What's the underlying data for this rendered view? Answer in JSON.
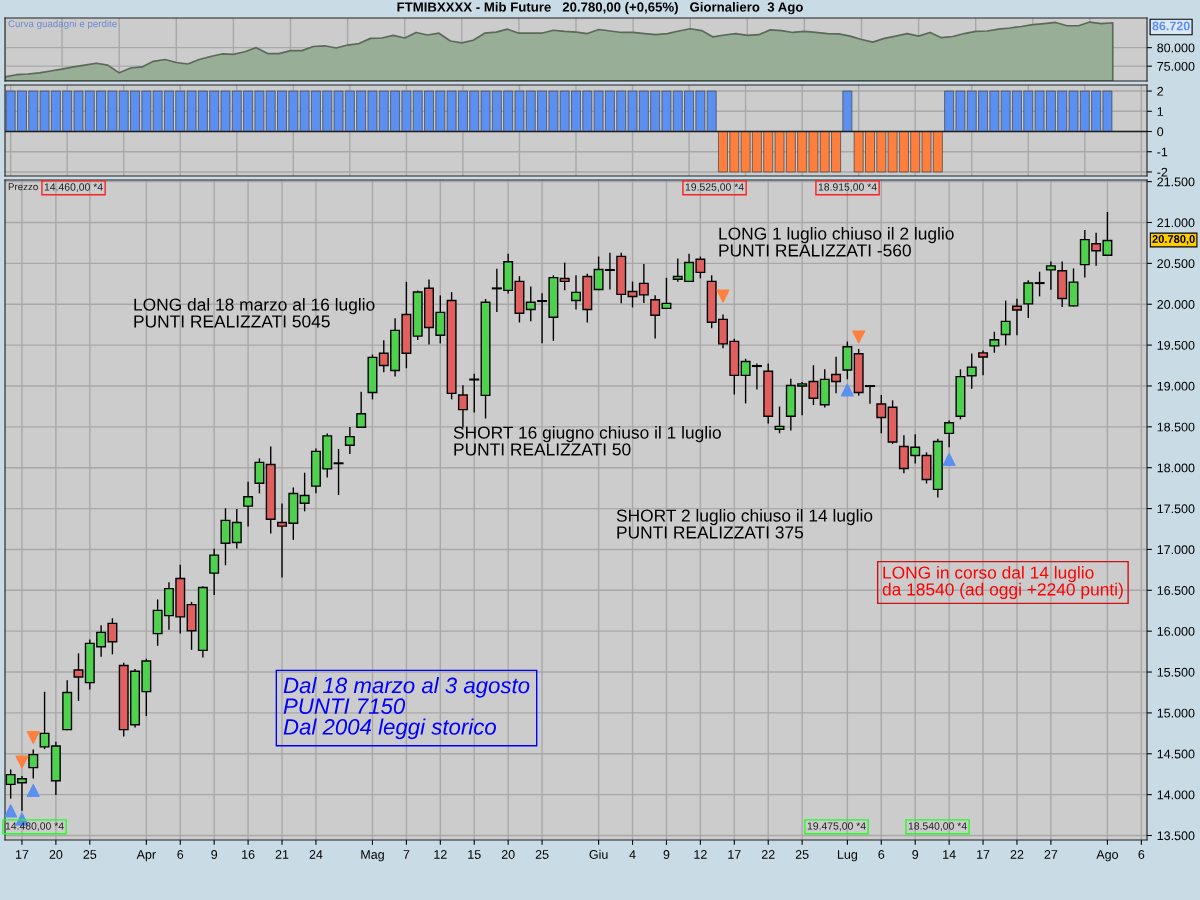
{
  "chart_data": [
    {
      "type": "area",
      "title": "FTMIBXXXX - Mib Future   20.780,00 (+0,65%)   Giornaliero  3 Ago",
      "categories": [
        null,
        null,
        null,
        null,
        null,
        null,
        null,
        null,
        null,
        null,
        null,
        null,
        null,
        null,
        null,
        null,
        null,
        null,
        null,
        null,
        null,
        null,
        null,
        null,
        null,
        null,
        null,
        null,
        null,
        null,
        null,
        null,
        null,
        null,
        null,
        null,
        null,
        null,
        null,
        null,
        null,
        null,
        null,
        null,
        null,
        null,
        null,
        null,
        null,
        null,
        null,
        null,
        null,
        null,
        null,
        null,
        null,
        null,
        null,
        null,
        null,
        null,
        null,
        null,
        null,
        null,
        null,
        null,
        null,
        null,
        null,
        null,
        null,
        null,
        null,
        null,
        null,
        null,
        null,
        null,
        null,
        null,
        null,
        null,
        null,
        null,
        null,
        null,
        null,
        null,
        null,
        null,
        null,
        null,
        null,
        null,
        null,
        null
      ],
      "series": [
        {
          "color": "#98ae96",
          "values": [
            72100,
            72700,
            72900,
            73200,
            73700,
            74200,
            74800,
            75300,
            75800,
            75300,
            73200,
            74500,
            74800,
            76300,
            76800,
            76000,
            75600,
            76800,
            77600,
            78300,
            78200,
            78900,
            80000,
            78400,
            78400,
            79200,
            79200,
            80300,
            80500,
            79900,
            80700,
            81100,
            82500,
            82600,
            83300,
            82600,
            84100,
            83400,
            83900,
            81800,
            81300,
            82000,
            83900,
            84200,
            85000,
            83900,
            83900,
            83900,
            84700,
            84400,
            84200,
            83800,
            84900,
            84500,
            84100,
            84100,
            83800,
            83500,
            83800,
            84500,
            85100,
            84600,
            82900,
            83400,
            83800,
            83300,
            83500,
            84800,
            84600,
            84100,
            84400,
            84100,
            83800,
            83700,
            83100,
            82200,
            81500,
            82500,
            83100,
            83800,
            83100,
            84100,
            82700,
            83000,
            83800,
            84400,
            84500,
            85000,
            85300,
            85700,
            86200,
            86500,
            86800,
            85900,
            85900,
            86900,
            86500,
            86720
          ]
        }
      ],
      "ylim": [
        71000,
        88000
      ],
      "yticks": [
        {
          "value": 75000,
          "label": "75.000"
        },
        {
          "value": 80000,
          "label": "80.000"
        }
      ],
      "annotations": [
        "Curva guadagni e perdite",
        "86.720"
      ],
      "grid": true,
      "tick_labels": "y"
    },
    {
      "type": "bar",
      "categories": [
        null,
        null,
        null,
        null,
        null,
        null,
        null,
        null,
        null,
        null,
        null,
        null,
        null,
        null,
        null,
        null,
        null,
        null,
        null,
        null,
        null,
        null,
        null,
        null,
        null,
        null,
        null,
        null,
        null,
        null,
        null,
        null,
        null,
        null,
        null,
        null,
        null,
        null,
        null,
        null,
        null,
        null,
        null,
        null,
        null,
        null,
        null,
        null,
        null,
        null,
        null,
        null,
        null,
        null,
        null,
        null,
        null,
        null,
        null,
        null,
        null,
        null,
        null,
        null,
        null,
        null,
        null,
        null,
        null,
        null,
        null,
        null,
        null,
        null,
        null,
        null,
        null,
        null,
        null,
        null,
        null,
        null,
        null,
        null,
        null,
        null,
        null,
        null,
        null,
        null,
        null,
        null,
        null,
        null,
        null,
        null,
        null,
        null,
        null,
        null,
        null
      ],
      "values": [
        2,
        2,
        2,
        2,
        2,
        2,
        2,
        2,
        2,
        2,
        2,
        2,
        2,
        2,
        2,
        2,
        2,
        2,
        2,
        2,
        2,
        2,
        2,
        2,
        2,
        2,
        2,
        2,
        2,
        2,
        2,
        2,
        2,
        2,
        2,
        2,
        2,
        2,
        2,
        2,
        2,
        2,
        2,
        2,
        2,
        2,
        2,
        2,
        2,
        2,
        2,
        2,
        2,
        2,
        2,
        2,
        2,
        2,
        2,
        2,
        2,
        2,
        2,
        -2,
        -2,
        -2,
        -2,
        -2,
        -2,
        -2,
        -2,
        -2,
        -2,
        -2,
        2,
        -2,
        -2,
        -2,
        -2,
        -2,
        -2,
        -2,
        -2,
        2,
        2,
        2,
        2,
        2,
        2,
        2,
        2,
        2,
        2,
        2,
        2,
        2,
        2,
        2,
        null,
        null,
        null
      ],
      "colors": [
        "#5b8ff0",
        "#5b8ff0",
        "#5b8ff0",
        "#5b8ff0",
        "#5b8ff0",
        "#5b8ff0",
        "#5b8ff0",
        "#5b8ff0",
        "#5b8ff0",
        "#5b8ff0",
        "#5b8ff0",
        "#5b8ff0",
        "#5b8ff0",
        "#5b8ff0",
        "#5b8ff0",
        "#5b8ff0",
        "#5b8ff0",
        "#5b8ff0",
        "#5b8ff0",
        "#5b8ff0",
        "#5b8ff0",
        "#5b8ff0",
        "#5b8ff0",
        "#5b8ff0",
        "#5b8ff0",
        "#5b8ff0",
        "#5b8ff0",
        "#5b8ff0",
        "#5b8ff0",
        "#5b8ff0",
        "#5b8ff0",
        "#5b8ff0",
        "#5b8ff0",
        "#5b8ff0",
        "#5b8ff0",
        "#5b8ff0",
        "#5b8ff0",
        "#5b8ff0",
        "#5b8ff0",
        "#5b8ff0",
        "#5b8ff0",
        "#5b8ff0",
        "#5b8ff0",
        "#5b8ff0",
        "#5b8ff0",
        "#5b8ff0",
        "#5b8ff0",
        "#5b8ff0",
        "#5b8ff0",
        "#5b8ff0",
        "#5b8ff0",
        "#5b8ff0",
        "#5b8ff0",
        "#5b8ff0",
        "#5b8ff0",
        "#5b8ff0",
        "#5b8ff0",
        "#5b8ff0",
        "#5b8ff0",
        "#5b8ff0",
        "#5b8ff0",
        "#5b8ff0",
        "#5b8ff0",
        "#ff7f3f",
        "#ff7f3f",
        "#ff7f3f",
        "#ff7f3f",
        "#ff7f3f",
        "#ff7f3f",
        "#ff7f3f",
        "#ff7f3f",
        "#ff7f3f",
        "#ff7f3f",
        "#ff7f3f",
        "#5b8ff0",
        "#ff7f3f",
        "#ff7f3f",
        "#ff7f3f",
        "#ff7f3f",
        "#ff7f3f",
        "#ff7f3f",
        "#ff7f3f",
        "#ff7f3f",
        "#5b8ff0",
        "#5b8ff0",
        "#5b8ff0",
        "#5b8ff0",
        "#5b8ff0",
        "#5b8ff0",
        "#5b8ff0",
        "#5b8ff0",
        "#5b8ff0",
        "#5b8ff0",
        "#5b8ff0",
        "#5b8ff0",
        "#5b8ff0",
        "#5b8ff0",
        "#5b8ff0",
        "#5b8ff0",
        "#5b8ff0",
        "#5b8ff0"
      ],
      "ylim": [
        -2.2,
        2.3
      ],
      "yticks": [
        -2,
        -1,
        0,
        1,
        2
      ],
      "grid": true,
      "tick_labels": "y"
    },
    {
      "type": "candlestick",
      "categories": [
        null,
        "17",
        null,
        null,
        "20",
        null,
        null,
        "25",
        null,
        null,
        null,
        null,
        "Apr",
        null,
        null,
        "6",
        null,
        null,
        "9",
        null,
        null,
        "16",
        null,
        null,
        "21",
        null,
        null,
        "24",
        null,
        null,
        null,
        null,
        "Mag",
        null,
        null,
        "7",
        null,
        null,
        "12",
        null,
        null,
        "15",
        null,
        null,
        "20",
        null,
        null,
        "25",
        null,
        null,
        null,
        null,
        "Giu",
        null,
        null,
        "4",
        null,
        null,
        "9",
        null,
        null,
        "12",
        null,
        null,
        "17",
        null,
        null,
        "22",
        null,
        null,
        "25",
        null,
        null,
        null,
        "Lug",
        null,
        null,
        "6",
        null,
        null,
        "9",
        null,
        null,
        "14",
        null,
        null,
        "17",
        null,
        null,
        "22",
        null,
        null,
        "27",
        null,
        null,
        null,
        null,
        "Ago",
        null,
        null,
        "6"
      ],
      "ohlc": [
        [
          14125,
          14300,
          13960,
          14245
        ],
        [
          14145,
          14220,
          13810,
          14195
        ],
        [
          14330,
          14545,
          14205,
          14490
        ],
        [
          14585,
          15250,
          14565,
          14750
        ],
        [
          14170,
          14640,
          14005,
          14595
        ],
        [
          14795,
          15390,
          14795,
          15250
        ],
        [
          15525,
          15720,
          15155,
          15440
        ],
        [
          15370,
          15890,
          15295,
          15850
        ],
        [
          15810,
          16065,
          15695,
          15985
        ],
        [
          16095,
          16150,
          15725,
          15870
        ],
        [
          15580,
          15605,
          14720,
          14795
        ],
        [
          14855,
          15530,
          14830,
          15510
        ],
        [
          15260,
          15655,
          14970,
          15635
        ],
        [
          15970,
          16380,
          15830,
          16255
        ],
        [
          16190,
          16590,
          16025,
          16520
        ],
        [
          16645,
          16805,
          15980,
          16175
        ],
        [
          16325,
          16350,
          15780,
          16005
        ],
        [
          15765,
          16540,
          15685,
          16535
        ],
        [
          16710,
          17000,
          16450,
          16930
        ],
        [
          17075,
          17495,
          16815,
          17355
        ],
        [
          17085,
          17485,
          17020,
          17330
        ],
        [
          17530,
          17820,
          17290,
          17645
        ],
        [
          17810,
          18105,
          17695,
          18065
        ],
        [
          18040,
          18250,
          17205,
          17370
        ],
        [
          17330,
          17555,
          16665,
          17285
        ],
        [
          17320,
          17750,
          17125,
          17685
        ],
        [
          17565,
          17930,
          17475,
          17660
        ],
        [
          17775,
          18225,
          17695,
          18200
        ],
        [
          17985,
          18410,
          17890,
          18390
        ],
        [
          18050,
          18220,
          17675,
          18055
        ],
        [
          18275,
          18490,
          18175,
          18380
        ],
        [
          18495,
          18920,
          18495,
          18660
        ],
        [
          18920,
          19375,
          18845,
          19350
        ],
        [
          19400,
          19550,
          19175,
          19250
        ],
        [
          19190,
          19820,
          19125,
          19680
        ],
        [
          19875,
          20265,
          19225,
          19400
        ],
        [
          19610,
          20160,
          19570,
          20150
        ],
        [
          20195,
          20295,
          19515,
          19715
        ],
        [
          19620,
          20100,
          19530,
          19900
        ],
        [
          20045,
          20140,
          18845,
          18910
        ],
        [
          18890,
          19000,
          18500,
          18710
        ],
        [
          19075,
          19140,
          18685,
          19080
        ],
        [
          18885,
          20055,
          18610,
          20025
        ],
        [
          20190,
          20425,
          19915,
          20195
        ],
        [
          20170,
          20610,
          20140,
          20520
        ],
        [
          20280,
          20335,
          19785,
          19890
        ],
        [
          19935,
          20210,
          19800,
          20025
        ],
        [
          20035,
          20125,
          19530,
          20040
        ],
        [
          19840,
          20345,
          19560,
          20325
        ],
        [
          20315,
          20500,
          20180,
          20280
        ],
        [
          20045,
          20345,
          19945,
          20145
        ],
        [
          20340,
          20365,
          19785,
          19935
        ],
        [
          20180,
          20575,
          20180,
          20425
        ],
        [
          20415,
          20620,
          20190,
          20420
        ],
        [
          20585,
          20620,
          20020,
          20120
        ],
        [
          20155,
          20270,
          19970,
          20095
        ],
        [
          20255,
          20485,
          20025,
          20115
        ],
        [
          20055,
          20100,
          19590,
          19865
        ],
        [
          19950,
          20315,
          19950,
          20010
        ],
        [
          20305,
          20550,
          20285,
          20340
        ],
        [
          20280,
          20610,
          20280,
          20510
        ],
        [
          20550,
          20575,
          20325,
          20390
        ],
        [
          20280,
          20345,
          19715,
          19780
        ],
        [
          19815,
          19865,
          19470,
          19515
        ],
        [
          19545,
          19570,
          18905,
          19130
        ],
        [
          19130,
          19325,
          18795,
          19300
        ],
        [
          19240,
          19265,
          18965,
          19245
        ],
        [
          19180,
          19265,
          18550,
          18630
        ],
        [
          18470,
          18740,
          18430,
          18505
        ],
        [
          18630,
          19080,
          18465,
          19005
        ],
        [
          19000,
          19040,
          18650,
          19025
        ],
        [
          19055,
          19245,
          18775,
          18850
        ],
        [
          18770,
          19195,
          18745,
          19080
        ],
        [
          19140,
          19350,
          18920,
          19055
        ],
        [
          19195,
          19535,
          19090,
          19480
        ],
        [
          19395,
          19445,
          18890,
          18920
        ],
        [
          18995,
          19000,
          18790,
          19000
        ],
        [
          18780,
          18880,
          18430,
          18615
        ],
        [
          18740,
          18815,
          18300,
          18315
        ],
        [
          18260,
          18390,
          17940,
          17990
        ],
        [
          18150,
          18400,
          18060,
          18250
        ],
        [
          18150,
          18180,
          17815,
          17855
        ],
        [
          17735,
          18345,
          17645,
          18320
        ],
        [
          18420,
          18570,
          18260,
          18550
        ],
        [
          18630,
          19195,
          18600,
          19115
        ],
        [
          19125,
          19390,
          18975,
          19230
        ],
        [
          19405,
          19425,
          19140,
          19355
        ],
        [
          19490,
          19655,
          19415,
          19565
        ],
        [
          19630,
          20035,
          19505,
          19790
        ],
        [
          19975,
          20060,
          19630,
          19930
        ],
        [
          20005,
          20285,
          19840,
          20260
        ],
        [
          20255,
          20390,
          20105,
          20260
        ],
        [
          20420,
          20515,
          20185,
          20470
        ],
        [
          20410,
          20515,
          19975,
          20070
        ],
        [
          19980,
          20430,
          19980,
          20270
        ],
        [
          20485,
          20900,
          20335,
          20790
        ],
        [
          20740,
          20865,
          20480,
          20655
        ],
        [
          20600,
          21120,
          20600,
          20780
        ],
        null,
        null,
        null
      ],
      "colors": [
        "#4fd14f",
        "#4fd14f",
        "#4fd14f",
        "#4fd14f",
        "#4fd14f",
        "#4fd14f",
        "#e06060",
        "#4fd14f",
        "#4fd14f",
        "#e06060",
        "#e06060",
        "#4fd14f",
        "#4fd14f",
        "#4fd14f",
        "#4fd14f",
        "#e06060",
        "#e06060",
        "#4fd14f",
        "#4fd14f",
        "#4fd14f",
        "#4fd14f",
        "#4fd14f",
        "#4fd14f",
        "#e06060",
        "#e06060",
        "#4fd14f",
        "#4fd14f",
        "#4fd14f",
        "#4fd14f",
        "#4fd14f",
        "#4fd14f",
        "#4fd14f",
        "#4fd14f",
        "#e06060",
        "#4fd14f",
        "#e06060",
        "#4fd14f",
        "#e06060",
        "#4fd14f",
        "#e06060",
        "#e06060",
        "#4fd14f",
        "#4fd14f",
        "#4fd14f",
        "#4fd14f",
        "#e06060",
        "#4fd14f",
        "#4fd14f",
        "#4fd14f",
        "#e06060",
        "#4fd14f",
        "#e06060",
        "#4fd14f",
        "#4fd14f",
        "#e06060",
        "#e06060",
        "#e06060",
        "#e06060",
        "#4fd14f",
        "#4fd14f",
        "#4fd14f",
        "#e06060",
        "#e06060",
        "#e06060",
        "#e06060",
        "#4fd14f",
        "#4fd14f",
        "#e06060",
        "#4fd14f",
        "#4fd14f",
        "#4fd14f",
        "#e06060",
        "#4fd14f",
        "#e06060",
        "#4fd14f",
        "#e06060",
        "#4fd14f",
        "#e06060",
        "#e06060",
        "#e06060",
        "#4fd14f",
        "#e06060",
        "#4fd14f",
        "#4fd14f",
        "#4fd14f",
        "#4fd14f",
        "#e06060",
        "#4fd14f",
        "#4fd14f",
        "#e06060",
        "#4fd14f",
        "#4fd14f",
        "#4fd14f",
        "#e06060",
        "#4fd14f",
        "#4fd14f",
        "#e06060",
        "#4fd14f",
        null,
        null,
        null
      ],
      "series": [
        {
          "type": "scatter",
          "marker": "triangle",
          "color": "#5b8ff0",
          "values": [
            13800,
            13700,
            14050,
            null,
            null,
            null,
            null,
            null,
            null,
            null,
            null,
            null,
            null,
            null,
            null,
            null,
            null,
            null,
            null,
            null,
            null,
            null,
            null,
            null,
            null,
            null,
            null,
            null,
            null,
            null,
            null,
            null,
            null,
            null,
            null,
            null,
            null,
            null,
            null,
            null,
            null,
            null,
            null,
            null,
            null,
            null,
            null,
            null,
            null,
            null,
            null,
            null,
            null,
            null,
            null,
            null,
            null,
            null,
            null,
            null,
            null,
            null,
            null,
            null,
            null,
            null,
            null,
            null,
            null,
            null,
            null,
            null,
            null,
            null,
            18950,
            null,
            null,
            null,
            null,
            null,
            null,
            null,
            null,
            18100,
            null,
            null,
            null,
            null,
            null,
            null,
            null,
            null,
            null,
            null,
            null,
            null,
            null,
            null,
            null,
            null,
            null
          ]
        },
        {
          "type": "scatter",
          "marker": "triangle_down",
          "color": "#ff7f3f",
          "values": [
            null,
            14400,
            14700,
            null,
            null,
            null,
            null,
            null,
            null,
            null,
            null,
            null,
            null,
            null,
            null,
            null,
            null,
            null,
            null,
            null,
            null,
            null,
            null,
            null,
            null,
            null,
            null,
            null,
            null,
            null,
            null,
            null,
            null,
            null,
            null,
            null,
            null,
            null,
            null,
            null,
            null,
            null,
            null,
            null,
            null,
            null,
            null,
            null,
            null,
            null,
            null,
            null,
            null,
            null,
            null,
            null,
            null,
            null,
            null,
            null,
            null,
            null,
            null,
            20100,
            null,
            null,
            null,
            null,
            null,
            null,
            null,
            null,
            null,
            null,
            null,
            19600,
            null,
            null,
            null,
            null,
            null,
            null,
            null,
            null,
            null,
            null,
            null,
            null,
            null,
            null,
            null,
            null,
            null,
            null,
            null,
            null,
            null,
            null,
            null,
            null,
            null
          ]
        }
      ],
      "ylim": [
        13445,
        21520
      ],
      "yticks": [
        {
          "value": 13500,
          "label": "13.500"
        },
        {
          "value": 14000,
          "label": "14.000"
        },
        {
          "value": 14500,
          "label": "14.500"
        },
        {
          "value": 15000,
          "label": "15.000"
        },
        {
          "value": 15500,
          "label": "15.500"
        },
        {
          "value": 16000,
          "label": "16.000"
        },
        {
          "value": 16500,
          "label": "16.500"
        },
        {
          "value": 17000,
          "label": "17.000"
        },
        {
          "value": 17500,
          "label": "17.500"
        },
        {
          "value": 18000,
          "label": "18.000"
        },
        {
          "value": 18500,
          "label": "18.500"
        },
        {
          "value": 19000,
          "label": "19.000"
        },
        {
          "value": 19500,
          "label": "19.500"
        },
        {
          "value": 20000,
          "label": "20.000"
        },
        {
          "value": 20500,
          "label": "20.500"
        },
        {
          "value": 21000,
          "label": "21.000"
        },
        {
          "value": 21500,
          "label": "21.500"
        }
      ],
      "annotations": [
        "LONG dal 18 marzo al 16 luglio\nPUNTI REALIZZATI 5045",
        "SHORT 16 giugno chiuso il 1 luglio\nPUNTI REALIZZATI 50",
        "LONG 1 luglio chiuso il 2 luglio\nPUNTI REALIZZATI -560",
        "SHORT 2 luglio chiuso il 14 luglio\nPUNTI REALIZZATI 375",
        "LONG in corso dal 14 luglio\nda 18540 (ad oggi +2240 punti)",
        "Dal 18 marzo al 3 agosto\nPUNTI 7150\nDal 2004 leggi storico",
        "Prezzo",
        "14.460,00 *4",
        "19.525,00 *4",
        "18.915,00 *4",
        "14.480,00 *4",
        "19.475,00 *4",
        "18.540,00 *4",
        "20.780,0"
      ],
      "grid": true
    }
  ]
}
